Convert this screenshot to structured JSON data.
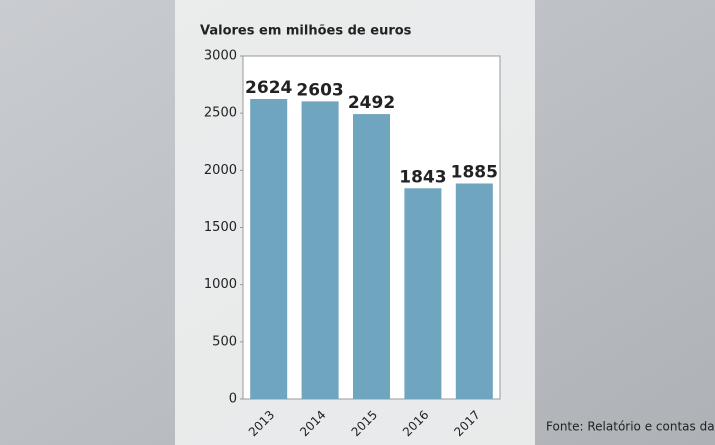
{
  "chart_data": {
    "type": "bar",
    "title": "Valores em milhões de euros",
    "categories": [
      "2013",
      "2014",
      "2015",
      "2016",
      "2017"
    ],
    "values": [
      2624,
      2603,
      2492,
      1843,
      1885
    ],
    "color": "#6fa5bf",
    "ylim": [
      0,
      3000
    ],
    "yticks": [
      0,
      500,
      1000,
      1500,
      2000,
      2500,
      3000
    ],
    "grid": false,
    "source": "Fonte: Relatório e contas da Ci"
  }
}
